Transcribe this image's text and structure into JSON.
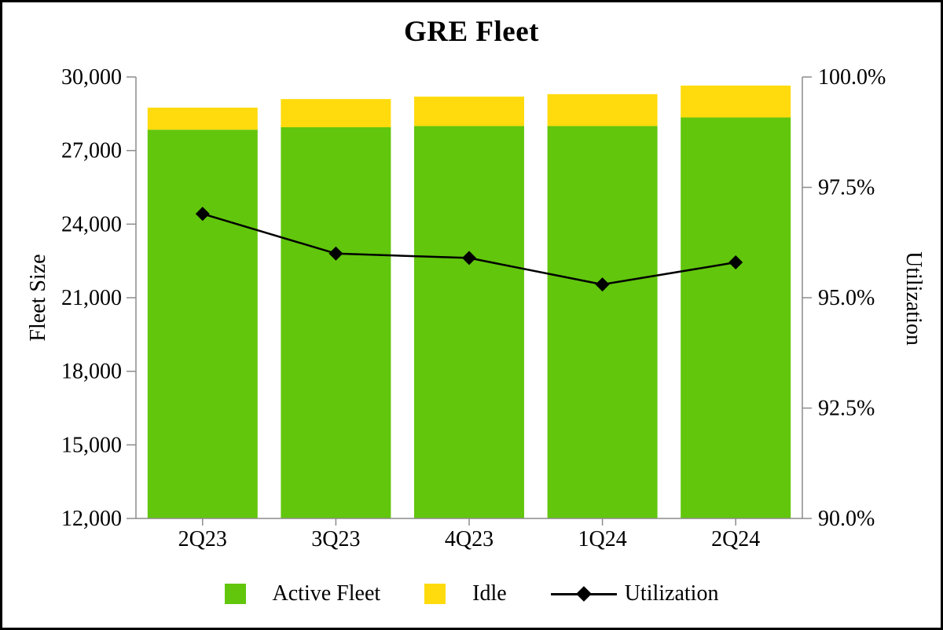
{
  "chart_data": {
    "type": "bar",
    "subtype": "stacked-bars-with-line-overlay",
    "title": "GRE Fleet",
    "categories": [
      "2Q23",
      "3Q23",
      "4Q23",
      "1Q24",
      "2Q24"
    ],
    "series": [
      {
        "name": "Active Fleet",
        "chart": "bar",
        "stack": 1,
        "axis": "left",
        "color": "#62C60D",
        "values": [
          27850,
          27950,
          28000,
          28000,
          28350
        ]
      },
      {
        "name": "Idle",
        "chart": "bar",
        "stack": 2,
        "axis": "left",
        "color": "#FFDB0D",
        "values": [
          900,
          1150,
          1200,
          1300,
          1300
        ]
      },
      {
        "name": "Utilization",
        "chart": "line",
        "marker": "diamond",
        "axis": "right",
        "color": "#000000",
        "values": [
          96.9,
          96.0,
          95.9,
          95.3,
          95.8
        ]
      }
    ],
    "left_axis": {
      "label": "Fleet Size",
      "min": 12000,
      "max": 30000,
      "step": 3000,
      "tick_labels": [
        "12,000",
        "15,000",
        "18,000",
        "21,000",
        "24,000",
        "27,000",
        "30,000"
      ]
    },
    "right_axis": {
      "label": "Utilization",
      "min": 90.0,
      "max": 100.0,
      "step": 2.5,
      "tick_labels": [
        "90.0%",
        "92.5%",
        "95.0%",
        "97.5%",
        "100.0%"
      ]
    },
    "legend": {
      "position": "bottom",
      "items": [
        "Active Fleet",
        "Idle",
        "Utilization"
      ]
    },
    "grid": false,
    "axis_color": "#8C8C8C"
  }
}
